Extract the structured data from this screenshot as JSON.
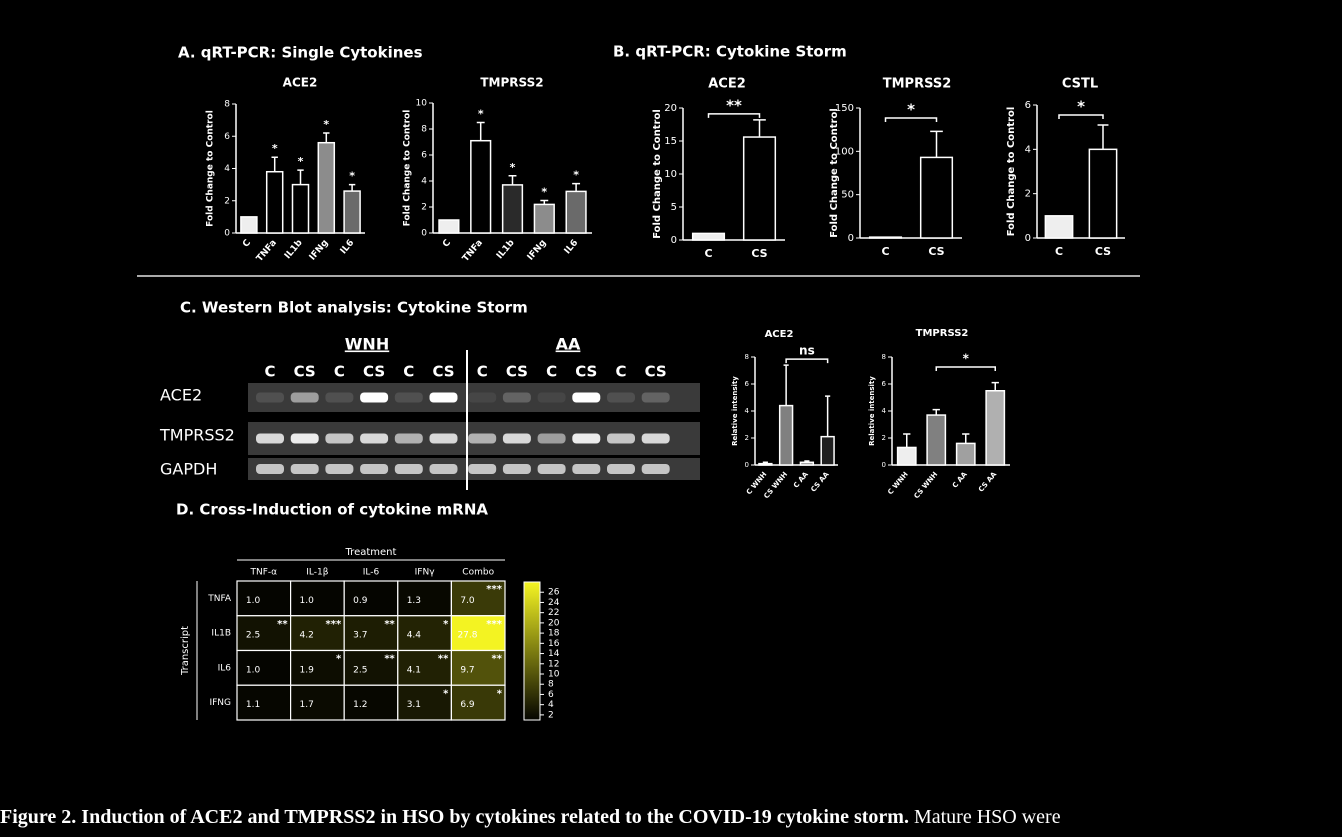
{
  "panel_titles": [
    "A. qRT-PCR: Single Cytokines",
    "B. qRT-PCR: Cytokine Storm",
    "C. Western Blot analysis: Cytokine Storm",
    "D. Cross-Induction of cytokine mRNA"
  ],
  "blot": {
    "groups": [
      "WNH",
      "AA"
    ],
    "lanes": [
      "C",
      "CS",
      "C",
      "CS",
      "C",
      "CS",
      "C",
      "CS",
      "C",
      "CS",
      "C",
      "CS"
    ],
    "rows": [
      "ACE2",
      "TMPRSS2",
      "GAPDH"
    ]
  },
  "chart_data": [
    {
      "type": "bar",
      "title": "ACE2",
      "ylabel": "Fold Change to Control",
      "categories": [
        "C",
        "TNFa",
        "IL1b",
        "IFNg",
        "IL6"
      ],
      "values": [
        1,
        3.8,
        3.0,
        5.6,
        2.6
      ],
      "errors": [
        null,
        0.9,
        0.9,
        0.6,
        0.4
      ],
      "colors": [
        "#eeeeee",
        "#000000",
        "#000000",
        "#8c8c8c",
        "#6a6a6a"
      ],
      "annotations": [
        null,
        "*",
        "*",
        "*",
        "*"
      ],
      "ylim": [
        0,
        8
      ],
      "yticks": [
        0,
        2,
        4,
        6,
        8
      ]
    },
    {
      "type": "bar",
      "title": "TMPRSS2",
      "ylabel": "Fold Change to Control",
      "categories": [
        "C",
        "TNFa",
        "IL1b",
        "IFNg",
        "IL6"
      ],
      "values": [
        1,
        7.1,
        3.7,
        2.2,
        3.2
      ],
      "errors": [
        null,
        1.4,
        0.7,
        0.3,
        0.6
      ],
      "colors": [
        "#eeeeee",
        "#000000",
        "#2a2a2a",
        "#8c8c8c",
        "#6a6a6a"
      ],
      "annotations": [
        null,
        "*",
        "*",
        "*",
        "*"
      ],
      "ylim": [
        0,
        10
      ],
      "yticks": [
        0,
        2,
        4,
        6,
        8,
        10
      ]
    },
    {
      "type": "bar",
      "title": "ACE2",
      "ylabel": "Fold Change to Control",
      "categories": [
        "C",
        "CS"
      ],
      "values": [
        1,
        15.6
      ],
      "errors": [
        null,
        2.6
      ],
      "colors": [
        "#eeeeee",
        "#000000"
      ],
      "comparison": "**",
      "ylim": [
        0,
        20
      ],
      "yticks": [
        0,
        5,
        10,
        15,
        20
      ]
    },
    {
      "type": "bar",
      "title": "TMPRSS2",
      "ylabel": "Fold Change to Control",
      "categories": [
        "C",
        "CS"
      ],
      "values": [
        1,
        93
      ],
      "errors": [
        null,
        30
      ],
      "colors": [
        "#eeeeee",
        "#000000"
      ],
      "comparison": "*",
      "ylim": [
        0,
        150
      ],
      "yticks": [
        0,
        50,
        100,
        150
      ]
    },
    {
      "type": "bar",
      "title": "CSTL",
      "ylabel": "Fold Change to Control",
      "categories": [
        "C",
        "CS"
      ],
      "values": [
        1,
        4.0
      ],
      "errors": [
        null,
        1.1
      ],
      "colors": [
        "#eeeeee",
        "#000000"
      ],
      "comparison": "*",
      "ylim": [
        0,
        6
      ],
      "yticks": [
        0,
        2,
        4,
        6
      ]
    },
    {
      "type": "bar",
      "title": "ACE2",
      "ylabel": "Relative intensity",
      "categories": [
        "C WNH",
        "CS WNH",
        "C AA",
        "CS AA"
      ],
      "values": [
        0.1,
        4.4,
        0.2,
        2.1
      ],
      "errors": [
        0.1,
        3.0,
        0.1,
        3.0
      ],
      "colors": [
        "#eeeeee",
        "#808080",
        "#a0a0a0",
        "#202020"
      ],
      "comparison": "ns",
      "ylim": [
        0,
        8
      ],
      "yticks": [
        0,
        2,
        4,
        6,
        8
      ]
    },
    {
      "type": "bar",
      "title": "TMPRSS2",
      "ylabel": "Relative intensity",
      "categories": [
        "C WNH",
        "CS WNH",
        "C AA",
        "CS AA"
      ],
      "values": [
        1.3,
        3.7,
        1.6,
        5.5
      ],
      "errors": [
        1.0,
        0.4,
        0.7,
        0.6
      ],
      "colors": [
        "#eeeeee",
        "#808080",
        "#a0a0a0",
        "#b0b0b0"
      ],
      "comparison": "*",
      "ylim": [
        0,
        8
      ],
      "yticks": [
        0,
        2,
        4,
        6,
        8
      ]
    },
    {
      "type": "heatmap",
      "xlabel": "Treatment",
      "ylabel": "Transcript",
      "columns": [
        "TNF-α",
        "IL-1β",
        "IL-6",
        "IFNγ",
        "Combo"
      ],
      "rows": [
        "TNFA",
        "IL1B",
        "IL6",
        "IFNG"
      ],
      "values": [
        [
          1.0,
          1.0,
          0.9,
          1.3,
          7.0
        ],
        [
          2.5,
          4.2,
          3.7,
          4.4,
          27.8
        ],
        [
          1.0,
          1.9,
          2.5,
          4.1,
          9.7
        ],
        [
          1.1,
          1.7,
          1.2,
          3.1,
          6.9
        ]
      ],
      "value_labels": [
        [
          "1.0",
          "1.0",
          "0.9",
          "1.3",
          "7.0"
        ],
        [
          "2.5",
          "4.2",
          "3.7",
          "4.4",
          "27.8"
        ],
        [
          "1.0",
          "1.9",
          "2.5",
          "4.1",
          "9.7"
        ],
        [
          "1.1",
          "1.7",
          "1.2",
          "3.1",
          "6.9"
        ]
      ],
      "annotations": [
        [
          null,
          null,
          null,
          null,
          "***"
        ],
        [
          "**",
          "***",
          "**",
          "*",
          "***"
        ],
        [
          null,
          "*",
          "**",
          "**",
          "**"
        ],
        [
          null,
          null,
          null,
          "*",
          "*"
        ]
      ],
      "clim": [
        1,
        28
      ],
      "cticks": [
        2,
        4,
        6,
        8,
        10,
        12,
        14,
        16,
        18,
        20,
        22,
        24,
        26
      ],
      "colors": [
        "#050500",
        "#f5f522"
      ]
    }
  ],
  "caption": {
    "bold": "Figure 2. Induction of ACE2 and TMPRSS2 in HSO by cytokines related to the COVID-19 cytokine storm.",
    "text": " Mature HSO were"
  }
}
